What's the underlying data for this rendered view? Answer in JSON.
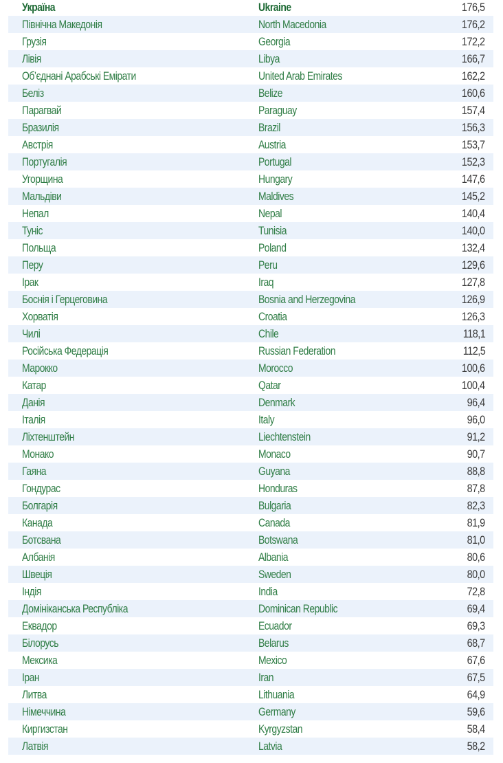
{
  "colors": {
    "name_text": "#2f7d45",
    "header_text": "#1f6b36",
    "value_text": "#3a3a3a",
    "stripe": "#ebf2fb"
  },
  "rows": [
    {
      "uk": "Україна",
      "en": "Ukraine",
      "value": "176,5"
    },
    {
      "uk": "Північна Македонія",
      "en": "North Macedonia",
      "value": "176,2"
    },
    {
      "uk": "Грузія",
      "en": "Georgia",
      "value": "172,2"
    },
    {
      "uk": "Лівія",
      "en": "Libya",
      "value": "166,7"
    },
    {
      "uk": "Об’єднані Арабські Емірати",
      "en": "United Arab Emirates",
      "value": "162,2"
    },
    {
      "uk": "Беліз",
      "en": "Belize",
      "value": "160,6"
    },
    {
      "uk": "Парагвай",
      "en": "Paraguay",
      "value": "157,4"
    },
    {
      "uk": "Бразилія",
      "en": "Brazil",
      "value": "156,3"
    },
    {
      "uk": "Австрія",
      "en": "Austria",
      "value": "153,7"
    },
    {
      "uk": "Португалія",
      "en": "Portugal",
      "value": "152,3"
    },
    {
      "uk": "Угорщина",
      "en": "Hungary",
      "value": "147,6"
    },
    {
      "uk": "Мальдіви",
      "en": "Maldives",
      "value": "145,2"
    },
    {
      "uk": "Непал",
      "en": "Nepal",
      "value": "140,4"
    },
    {
      "uk": "Туніс",
      "en": "Tunisia",
      "value": "140,0"
    },
    {
      "uk": "Польща",
      "en": "Poland",
      "value": "132,4"
    },
    {
      "uk": "Перу",
      "en": "Peru",
      "value": "129,6"
    },
    {
      "uk": "Ірак",
      "en": "Iraq",
      "value": "127,8"
    },
    {
      "uk": "Боснія і Герцеговина",
      "en": "Bosnia and Herzegovina",
      "value": "126,9"
    },
    {
      "uk": "Хорватія",
      "en": "Croatia",
      "value": "126,3"
    },
    {
      "uk": "Чилі",
      "en": "Chile",
      "value": "118,1"
    },
    {
      "uk": "Російська Федерація",
      "en": "Russian Federation",
      "value": "112,5"
    },
    {
      "uk": "Марокко",
      "en": "Morocco",
      "value": "100,6"
    },
    {
      "uk": "Катар",
      "en": "Qatar",
      "value": "100,4"
    },
    {
      "uk": "Данія",
      "en": "Denmark",
      "value": "96,4"
    },
    {
      "uk": "Італія",
      "en": "Italy",
      "value": "96,0"
    },
    {
      "uk": "Ліхтенштейн",
      "en": "Liechtenstein",
      "value": "91,2"
    },
    {
      "uk": "Монако",
      "en": "Monaco",
      "value": "90,7"
    },
    {
      "uk": "Гаяна",
      "en": "Guyana",
      "value": "88,8"
    },
    {
      "uk": "Гондурас",
      "en": "Honduras",
      "value": "87,8"
    },
    {
      "uk": "Болгарія",
      "en": "Bulgaria",
      "value": "82,3"
    },
    {
      "uk": "Канада",
      "en": "Canada",
      "value": "81,9"
    },
    {
      "uk": "Ботсвана",
      "en": "Botswana",
      "value": "81,0"
    },
    {
      "uk": "Албанія",
      "en": "Albania",
      "value": "80,6"
    },
    {
      "uk": "Швеція",
      "en": "Sweden",
      "value": "80,0"
    },
    {
      "uk": "Індія",
      "en": "India",
      "value": "72,8"
    },
    {
      "uk": "Домініканська Республіка",
      "en": "Dominican Republic",
      "value": "69,4"
    },
    {
      "uk": "Еквадор",
      "en": "Ecuador",
      "value": "69,3"
    },
    {
      "uk": "Білорусь",
      "en": "Belarus",
      "value": "68,7"
    },
    {
      "uk": "Мексика",
      "en": "Mexico",
      "value": "67,6"
    },
    {
      "uk": "Іран",
      "en": "Iran",
      "value": "67,5"
    },
    {
      "uk": "Литва",
      "en": "Lithuania",
      "value": "64,9"
    },
    {
      "uk": "Німеччина",
      "en": "Germany",
      "value": "59,6"
    },
    {
      "uk": "Киргизстан",
      "en": "Kyrgyzstan",
      "value": "58,4"
    },
    {
      "uk": "Латвія",
      "en": "Latvia",
      "value": "58,2"
    }
  ]
}
